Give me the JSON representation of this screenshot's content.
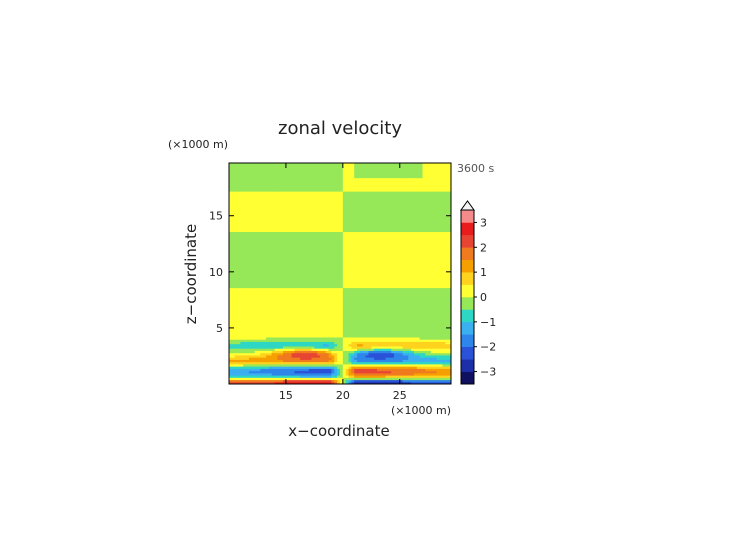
{
  "chart_data": {
    "type": "heatmap",
    "title": "zonal velocity",
    "xlabel": "x−coordinate",
    "ylabel": "z−coordinate",
    "x_unit": "(×1000 m)",
    "y_unit": "(×1000 m)",
    "time_label": "3600 s",
    "xlim": [
      10,
      29.5
    ],
    "ylim": [
      0,
      19.7
    ],
    "x_ticks": [
      15,
      20,
      25
    ],
    "y_ticks": [
      5,
      10,
      15
    ],
    "grid": false,
    "colorbar": {
      "range": [
        -3.5,
        3.5
      ],
      "step": 0.5,
      "extend": "max",
      "ticks": [
        3,
        2,
        1,
        0,
        -1,
        -2,
        -3
      ],
      "colors": [
        "#101060",
        "#1c2fa8",
        "#2a52d8",
        "#2f86ea",
        "#3bb0f0",
        "#2ed6c4",
        "#96e858",
        "#ffff33",
        "#ffd21e",
        "#f5a000",
        "#f07a1e",
        "#e84433",
        "#e81c1c",
        "#f58a8a"
      ],
      "extend_color": "#f4f4f4"
    },
    "field_description": "zonal velocity, contour-filled; values mostly between -0.5 and 0.5 in upper domain with alternating bands, strong positive and negative jets near the surface (z < 4 km), antisymmetric about x = 20",
    "approx_bands": [
      {
        "z": [
          0.0,
          0.6
        ],
        "value_left": 3.0,
        "value_right": -3.0
      },
      {
        "z": [
          0.6,
          1.6
        ],
        "value_left": -2.0,
        "value_right": 2.5
      },
      {
        "z": [
          1.6,
          2.6
        ],
        "value_left": 1.5,
        "value_right": -1.5
      },
      {
        "z": [
          2.6,
          3.6
        ],
        "value_left": 2.5,
        "value_right": -2.5
      },
      {
        "z": [
          3.6,
          5.0
        ],
        "value_left": -0.5,
        "value_right": 0.5
      },
      {
        "z": [
          5.0,
          8.5
        ],
        "value_left": 0.3,
        "value_right": -0.3
      },
      {
        "z": [
          8.5,
          13.5
        ],
        "value_left": -0.3,
        "value_right": 0.3
      },
      {
        "z": [
          13.5,
          17.0
        ],
        "value_left": 0.3,
        "value_right": -0.3
      },
      {
        "z": [
          17.0,
          19.7
        ],
        "value_left": -0.3,
        "value_right": 0.3
      }
    ]
  }
}
